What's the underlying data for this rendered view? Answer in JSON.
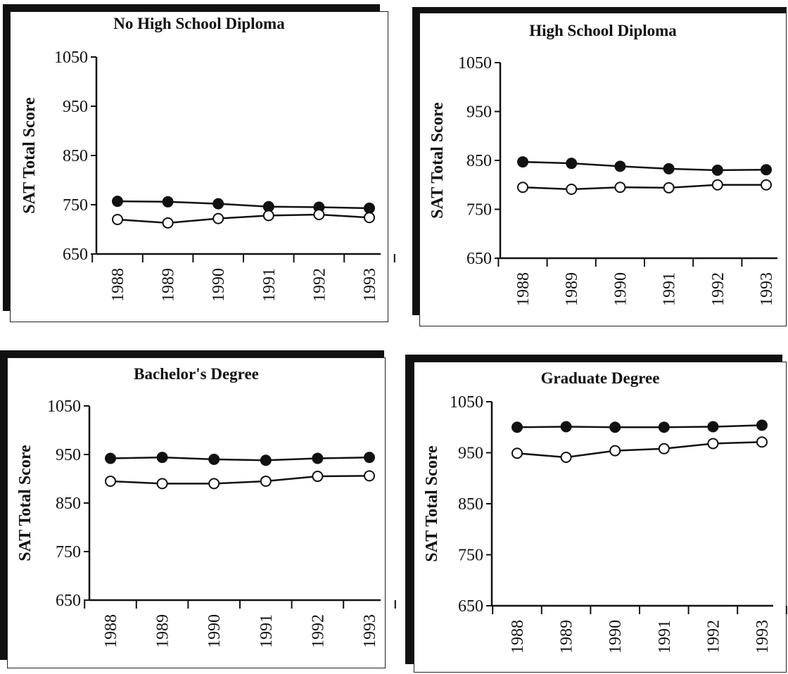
{
  "chart_data": [
    {
      "type": "line",
      "title": "No High School Diploma",
      "ylabel": "SAT Total Score",
      "xlabel": "",
      "categories": [
        "1988",
        "1989",
        "1990",
        "1991",
        "1992",
        "1993"
      ],
      "yticks": [
        "650",
        "750",
        "850",
        "950",
        "1050"
      ],
      "ylim": [
        650,
        1050
      ],
      "series": [
        {
          "marker": "filled",
          "values": [
            757,
            756,
            752,
            746,
            745,
            743
          ]
        },
        {
          "marker": "open",
          "values": [
            720,
            713,
            722,
            728,
            730,
            724
          ]
        }
      ]
    },
    {
      "type": "line",
      "title": "High School Diploma",
      "ylabel": "SAT Total Score",
      "xlabel": "",
      "categories": [
        "1988",
        "1989",
        "1990",
        "1991",
        "1992",
        "1993"
      ],
      "yticks": [
        "650",
        "750",
        "850",
        "950",
        "1050"
      ],
      "ylim": [
        650,
        1050
      ],
      "series": [
        {
          "marker": "filled",
          "values": [
            847,
            844,
            838,
            833,
            830,
            831
          ]
        },
        {
          "marker": "open",
          "values": [
            795,
            791,
            795,
            794,
            800,
            800
          ]
        }
      ]
    },
    {
      "type": "line",
      "title": "Bachelor's Degree",
      "ylabel": "SAT Total Score",
      "xlabel": "",
      "categories": [
        "1988",
        "1989",
        "1990",
        "1991",
        "1992",
        "1993"
      ],
      "yticks": [
        "650",
        "750",
        "850",
        "950",
        "1050"
      ],
      "ylim": [
        650,
        1050
      ],
      "series": [
        {
          "marker": "filled",
          "values": [
            942,
            944,
            940,
            938,
            942,
            944
          ]
        },
        {
          "marker": "open",
          "values": [
            895,
            890,
            890,
            895,
            905,
            906
          ]
        }
      ]
    },
    {
      "type": "line",
      "title": "Graduate Degree",
      "ylabel": "SAT Total Score",
      "xlabel": "",
      "categories": [
        "1988",
        "1989",
        "1990",
        "1991",
        "1992",
        "1993"
      ],
      "yticks": [
        "650",
        "750",
        "850",
        "950",
        "1050"
      ],
      "ylim": [
        650,
        1050
      ],
      "series": [
        {
          "marker": "filled",
          "values": [
            1000,
            1001,
            1000,
            1000,
            1001,
            1004
          ]
        },
        {
          "marker": "open",
          "values": [
            949,
            941,
            954,
            958,
            968,
            971
          ]
        }
      ]
    }
  ],
  "colors": {
    "ink": "#111111",
    "background": "#ffffff"
  }
}
